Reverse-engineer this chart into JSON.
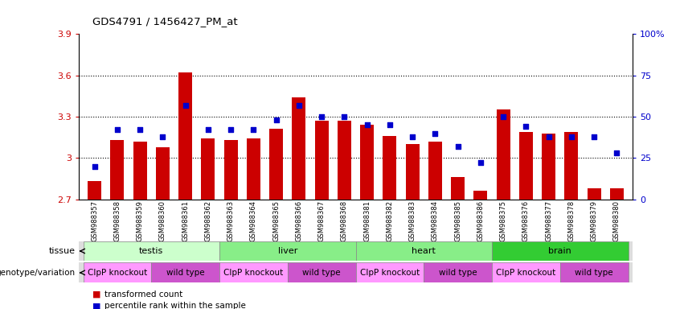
{
  "title": "GDS4791 / 1456427_PM_at",
  "samples": [
    "GSM988357",
    "GSM988358",
    "GSM988359",
    "GSM988360",
    "GSM988361",
    "GSM988362",
    "GSM988363",
    "GSM988364",
    "GSM988365",
    "GSM988366",
    "GSM988367",
    "GSM988368",
    "GSM988381",
    "GSM988382",
    "GSM988383",
    "GSM988384",
    "GSM988385",
    "GSM988386",
    "GSM988375",
    "GSM988376",
    "GSM988377",
    "GSM988378",
    "GSM988379",
    "GSM988380"
  ],
  "bar_values": [
    2.83,
    3.13,
    3.12,
    3.08,
    3.62,
    3.14,
    3.13,
    3.14,
    3.21,
    3.44,
    3.27,
    3.27,
    3.24,
    3.16,
    3.1,
    3.12,
    2.86,
    2.76,
    3.35,
    3.19,
    3.18,
    3.19,
    2.78,
    2.78
  ],
  "dot_values": [
    20,
    42,
    42,
    38,
    57,
    42,
    42,
    42,
    48,
    57,
    50,
    50,
    45,
    45,
    38,
    40,
    32,
    22,
    50,
    44,
    38,
    38,
    38,
    28
  ],
  "ymin": 2.7,
  "ymax": 3.9,
  "yticks_left": [
    2.7,
    3.0,
    3.3,
    3.6,
    3.9
  ],
  "yticks_right": [
    0,
    25,
    50,
    75,
    100
  ],
  "ytick_labels_left": [
    "2.7",
    "3",
    "3.3",
    "3.6",
    "3.9"
  ],
  "ytick_labels_right": [
    "0",
    "25",
    "50",
    "75",
    "100%"
  ],
  "gridlines": [
    3.0,
    3.3,
    3.6
  ],
  "bar_color": "#cc0000",
  "dot_color": "#0000cc",
  "tissue_spans": [
    {
      "label": "testis",
      "start": 0,
      "end": 5,
      "color": "#ccffcc"
    },
    {
      "label": "liver",
      "start": 6,
      "end": 11,
      "color": "#88ee88"
    },
    {
      "label": "heart",
      "start": 12,
      "end": 17,
      "color": "#88ee88"
    },
    {
      "label": "brain",
      "start": 18,
      "end": 23,
      "color": "#33cc33"
    }
  ],
  "geno_spans": [
    {
      "label": "ClpP knockout",
      "start": 0,
      "end": 2,
      "color": "#ff99ff"
    },
    {
      "label": "wild type",
      "start": 3,
      "end": 5,
      "color": "#cc55cc"
    },
    {
      "label": "ClpP knockout",
      "start": 6,
      "end": 8,
      "color": "#ff99ff"
    },
    {
      "label": "wild type",
      "start": 9,
      "end": 11,
      "color": "#cc55cc"
    },
    {
      "label": "ClpP knockout",
      "start": 12,
      "end": 14,
      "color": "#ff99ff"
    },
    {
      "label": "wild type",
      "start": 15,
      "end": 17,
      "color": "#cc55cc"
    },
    {
      "label": "ClpP knockout",
      "start": 18,
      "end": 20,
      "color": "#ff99ff"
    },
    {
      "label": "wild type",
      "start": 21,
      "end": 23,
      "color": "#cc55cc"
    }
  ],
  "tissue_row_label": "tissue",
  "genotype_row_label": "genotype/variation",
  "legend_items": [
    {
      "label": "transformed count",
      "color": "#cc0000"
    },
    {
      "label": "percentile rank within the sample",
      "color": "#0000cc"
    }
  ]
}
